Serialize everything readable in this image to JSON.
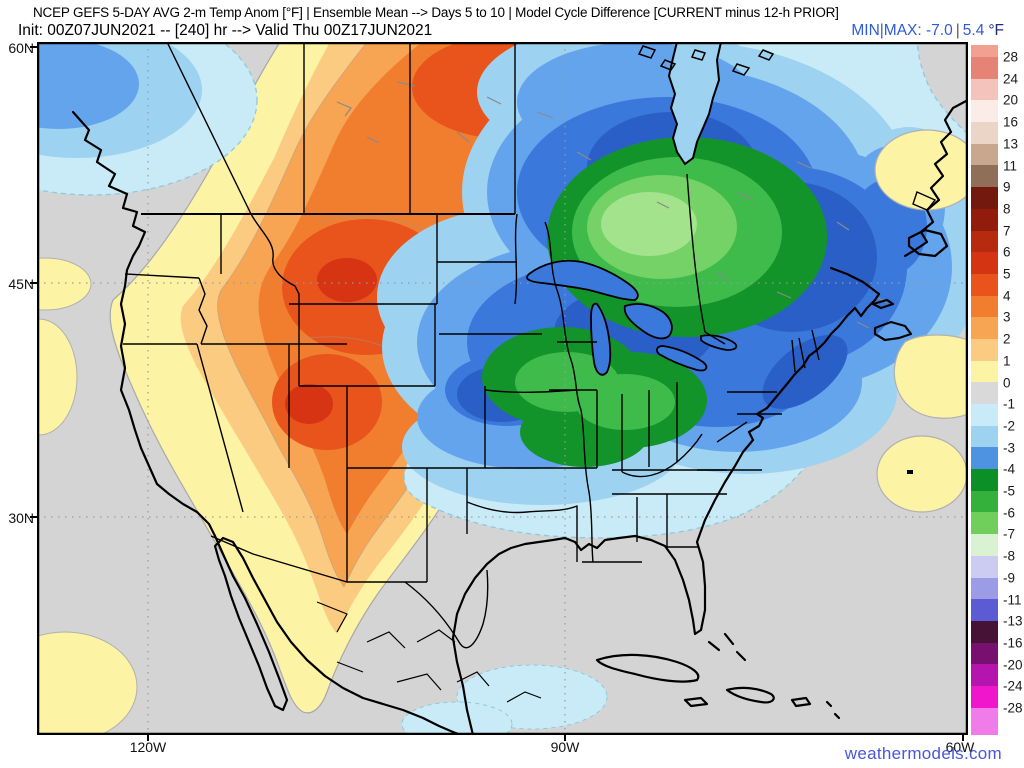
{
  "header": {
    "line1": "NCEP GEFS 5-DAY AVG 2-m Temp Anom [°F] | Ensemble Mean --> Days 5 to 10 | Model Cycle Difference [CURRENT minus 12-h PRIOR]",
    "line2": "Init: 00Z07JUN2021 -- [240] hr --> Valid Thu 00Z17JUN2021",
    "minmax": {
      "label": "MIN|MAX:",
      "min": "-7.0",
      "separator": "|",
      "max": "5.4",
      "unit": "°F",
      "text_color": "#2E5BDB",
      "unit_color": "#1F2A7A"
    }
  },
  "axes": {
    "lat": [
      "60N",
      "45N",
      "30N"
    ],
    "lon": [
      "120W",
      "90W",
      "60W"
    ]
  },
  "colorbar": {
    "labels": [
      "28",
      "24",
      "20",
      "16",
      "13",
      "11",
      "9",
      "8",
      "7",
      "6",
      "5",
      "4",
      "3",
      "2",
      "1",
      "0",
      "-1",
      "-2",
      "-3",
      "-4",
      "-5",
      "-6",
      "-7",
      "-8",
      "-9",
      "-11",
      "-13",
      "-16",
      "-20",
      "-24",
      "-28"
    ],
    "cells": [
      "#F2A092",
      "#E58377",
      "#F4C3BC",
      "#FBECE8",
      "#EBD5C6",
      "#C9A78F",
      "#8F6F57",
      "#73190E",
      "#921C0B",
      "#B62A10",
      "#D53413",
      "#E8541B",
      "#F17E2E",
      "#F7A453",
      "#FBCB82",
      "#FCF3A5",
      "#D9D9D9",
      "#C9EBF8",
      "#9DD2F1",
      "#4E92E2",
      "#0B8F26",
      "#33B13A",
      "#70CE5B",
      "#D9F2D2",
      "#CCCCF2",
      "#9C9CE6",
      "#5B5BD3",
      "#461236",
      "#77106E",
      "#B515AE",
      "#EF16CC",
      "#F07CEA"
    ]
  },
  "watermark": {
    "text": "weathermodels.com",
    "color": "#4A55DD"
  },
  "map_data": {
    "type": "filled-contour-map",
    "variable": "2-m temperature anomaly difference (°F), 5-day average days 5-10, ensemble mean, current cycle minus 12-h prior",
    "region": "North America: CONUS, southern Canada, Mexico, Caribbean, western Atlantic",
    "lat_gridlines": [
      "60N",
      "45N",
      "30N"
    ],
    "lon_gridlines": [
      "120W",
      "90W",
      "60W"
    ],
    "min_anomaly_f": -7.0,
    "max_anomaly_f": 5.4,
    "features": [
      {
        "area": "Canadian Prairies / Montana / Idaho (northern Rockies)",
        "anomaly_f": "+3 to +5 (warmest)"
      },
      {
        "area": "West Coast band, Great Basin, Baja California",
        "anomaly_f": "+1 to +3"
      },
      {
        "area": "Ontario/Quebec north of Great Lakes",
        "anomaly_f": "-5 to -7 (coolest)"
      },
      {
        "area": "Corn Belt: Iowa, Illinois, Missouri, Indiana, Ohio",
        "anomaly_f": "-4 to -6"
      },
      {
        "area": "Great Lakes, Northeast US, eastern Canada",
        "anomaly_f": "-2 to -4"
      },
      {
        "area": "Central/Southern Plains (Kansas/Oklahoma)",
        "anomaly_f": "-2 to -4"
      },
      {
        "area": "Pacific Northwest offshore",
        "anomaly_f": "-1 to -3"
      },
      {
        "area": "Western Atlantic patches, left-edge Pacific patches",
        "anomaly_f": "+1"
      },
      {
        "area": "Gulf of Mexico, Mexico, Caribbean, southeast US coast",
        "anomaly_f": "near 0"
      }
    ]
  }
}
